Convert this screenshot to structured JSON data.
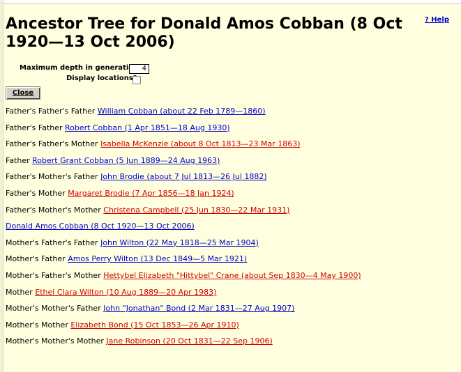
{
  "help_label": "? Help",
  "title": "Ancestor Tree for Donald Amos Cobban (8 Oct 1920—13 Oct 2006)",
  "form": {
    "depth_label": "Maximum depth in generations:",
    "depth_value": "4",
    "locations_label": "Display locations?",
    "close_label": "Close"
  },
  "colors": {
    "male_link": "#0000cc",
    "female_link": "#cc0000",
    "background": "#ffffe0"
  },
  "ancestors": [
    {
      "relation": "Father's Father's Father",
      "name": "William Cobban (about 22 Feb 1789—1860)",
      "sex": "m"
    },
    {
      "relation": "Father's Father",
      "name": "Robert Cobban (1 Apr 1851—18 Aug 1930)",
      "sex": "m"
    },
    {
      "relation": "Father's Father's Mother",
      "name": "Isabella McKenzie (about 8 Oct 1813—23 Mar 1863)",
      "sex": "f"
    },
    {
      "relation": "Father",
      "name": "Robert Grant Cobban (5 Jun 1889—24 Aug 1963)",
      "sex": "m"
    },
    {
      "relation": "Father's Mother's Father",
      "name": "John Brodie (about 7 Jul 1813—26 Jul 1882)",
      "sex": "m"
    },
    {
      "relation": "Father's Mother",
      "name": "Margaret Brodie (7 Apr 1856—18 Jan 1924)",
      "sex": "f"
    },
    {
      "relation": "Father's Mother's Mother",
      "name": "Christena Campbell (25 Jun 1830—22 Mar 1931)",
      "sex": "f"
    },
    {
      "relation": "",
      "name": "Donald Amos Cobban (8 Oct 1920—13 Oct 2006)",
      "sex": "m"
    },
    {
      "relation": "Mother's Father's Father",
      "name": "John Wilton (22 May 1818—25 Mar 1904)",
      "sex": "m"
    },
    {
      "relation": "Mother's Father",
      "name": "Amos Perry Wilton (13 Dec 1849—5 Mar 1921)",
      "sex": "m"
    },
    {
      "relation": "Mother's Father's Mother",
      "name": "Hettybel Elizabeth \"Hittybel\" Crane (about Sep 1830—4 May 1900)",
      "sex": "f"
    },
    {
      "relation": "Mother",
      "name": "Ethel Clara Wilton (10 Aug 1889—20 Apr 1983)",
      "sex": "f"
    },
    {
      "relation": "Mother's Mother's Father",
      "name": "John \"Jonathan\" Bond (2 Mar 1831—27 Aug 1907)",
      "sex": "m"
    },
    {
      "relation": "Mother's Mother",
      "name": "Elizabeth Bond (15 Oct 1853—26 Apr 1910)",
      "sex": "f"
    },
    {
      "relation": "Mother's Mother's Mother",
      "name": "Jane Robinson (20 Oct 1831—22 Sep 1906)",
      "sex": "f"
    }
  ]
}
